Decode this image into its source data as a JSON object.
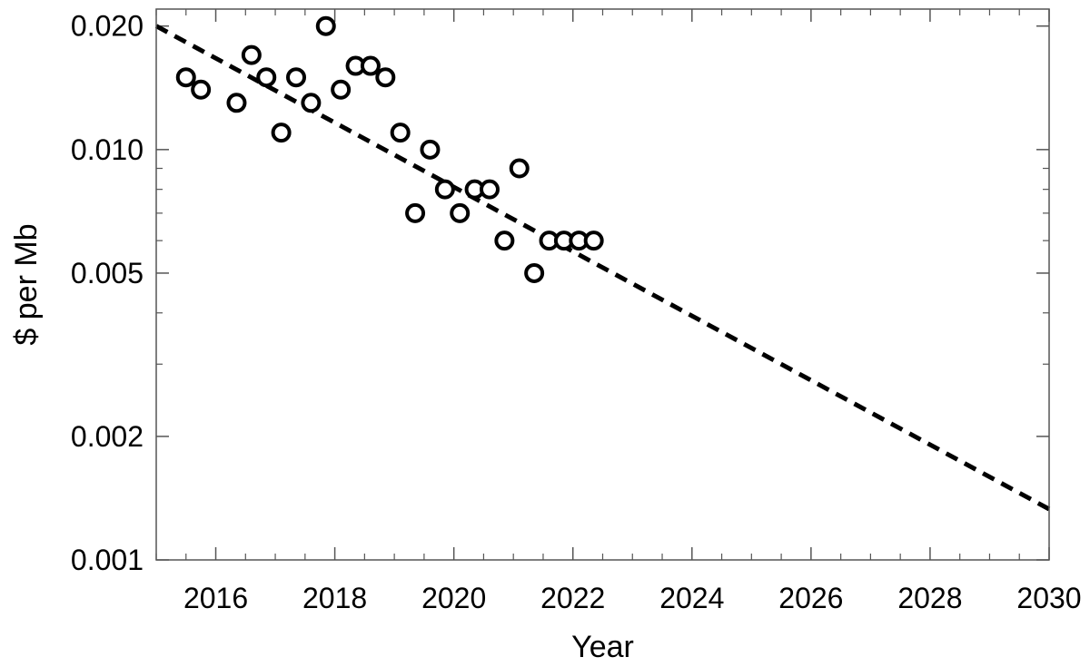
{
  "chart_data": {
    "type": "scatter",
    "title": "",
    "xlabel": "Year",
    "ylabel": "$ per Mb",
    "xlim": [
      2015,
      2030
    ],
    "ylim": [
      0.001,
      0.022
    ],
    "yscale": "log",
    "grid": false,
    "legend": "none",
    "x_ticks": [
      2016,
      2018,
      2020,
      2022,
      2024,
      2026,
      2028,
      2030
    ],
    "x_tick_labels": [
      "2016",
      "2018",
      "2020",
      "2022",
      "2024",
      "2026",
      "2028",
      "2030"
    ],
    "y_ticks": [
      0.001,
      0.002,
      0.005,
      0.01,
      0.02
    ],
    "y_tick_labels": [
      "0.001",
      "0.002",
      "0.005",
      "0.010",
      "0.020"
    ],
    "series": [
      {
        "type": "scatter",
        "marker": "open-circle",
        "x": [
          2015.5,
          2015.75,
          2016.35,
          2016.6,
          2016.85,
          2017.1,
          2017.35,
          2017.6,
          2017.85,
          2018.1,
          2018.35,
          2018.6,
          2018.85,
          2019.1,
          2019.35,
          2019.6,
          2019.85,
          2020.1,
          2020.35,
          2020.6,
          2020.85,
          2021.1,
          2021.35,
          2021.6,
          2021.85,
          2022.1,
          2022.35
        ],
        "y": [
          0.015,
          0.014,
          0.013,
          0.017,
          0.015,
          0.011,
          0.015,
          0.013,
          0.02,
          0.014,
          0.016,
          0.016,
          0.015,
          0.011,
          0.007,
          0.01,
          0.008,
          0.007,
          0.008,
          0.008,
          0.006,
          0.009,
          0.005,
          0.006,
          0.006,
          0.006,
          0.006
        ]
      },
      {
        "type": "line",
        "style": "dashed",
        "x": [
          2015,
          2030
        ],
        "y": [
          0.02,
          0.00133
        ]
      }
    ]
  }
}
